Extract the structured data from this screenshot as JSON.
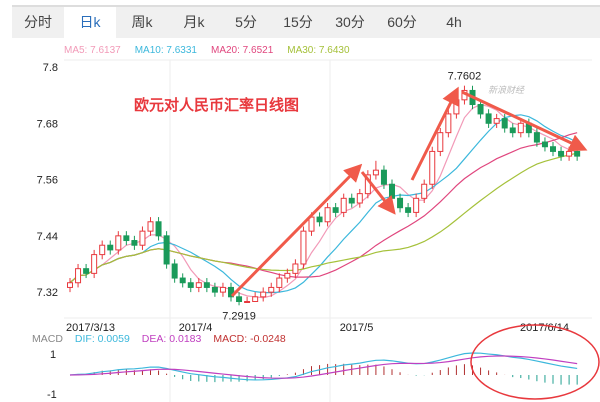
{
  "tabs": [
    "分时",
    "日k",
    "周k",
    "月k",
    "5分",
    "15分",
    "30分",
    "60分",
    "4h"
  ],
  "active_tab": "日k",
  "ma_legend": [
    {
      "label": "MA5: 7.6137",
      "color": "#f29ab8"
    },
    {
      "label": "MA10: 7.6331",
      "color": "#3cb8dc"
    },
    {
      "label": "MA20: 7.6521",
      "color": "#e0467e"
    },
    {
      "label": "MA30: 7.6430",
      "color": "#a5c13a"
    }
  ],
  "annotation": "欧元对人民币汇率日线图",
  "watermark": "新浪财经",
  "macd_legend": {
    "name": "MACD",
    "dif": "DIF: 0.0059",
    "dea": "DEA: 0.0183",
    "macd": "MACD: -0.0248"
  },
  "colors": {
    "up": "#e8383d",
    "down": "#1a9a5a",
    "arrow": "#f05a4a"
  },
  "chart_data": {
    "type": "candlestick",
    "y_ticks": [
      7.8,
      7.68,
      7.56,
      7.44,
      7.32
    ],
    "ylim": [
      7.28,
      7.8
    ],
    "x_ticks": [
      {
        "label": "2017/3/13",
        "index": 0
      },
      {
        "label": "2017/4",
        "index": 14
      },
      {
        "label": "2017/5",
        "index": 34
      },
      {
        "label": "2017/6/14",
        "index": 63
      }
    ],
    "high_label": {
      "value": "7.7602",
      "index": 49
    },
    "low_label": {
      "value": "7.2919",
      "index": 21
    },
    "open": [
      7.33,
      7.34,
      7.37,
      7.36,
      7.4,
      7.42,
      7.41,
      7.44,
      7.43,
      7.42,
      7.45,
      7.47,
      7.44,
      7.38,
      7.35,
      7.34,
      7.33,
      7.34,
      7.33,
      7.32,
      7.33,
      7.31,
      7.3,
      7.3,
      7.31,
      7.32,
      7.33,
      7.35,
      7.36,
      7.38,
      7.45,
      7.48,
      7.47,
      7.5,
      7.49,
      7.52,
      7.51,
      7.53,
      7.57,
      7.58,
      7.55,
      7.52,
      7.5,
      7.49,
      7.52,
      7.55,
      7.62,
      7.66,
      7.7,
      7.73,
      7.75,
      7.72,
      7.7,
      7.68,
      7.69,
      7.67,
      7.66,
      7.68,
      7.66,
      7.64,
      7.63,
      7.62,
      7.61,
      7.62
    ],
    "high": [
      7.35,
      7.38,
      7.38,
      7.41,
      7.43,
      7.43,
      7.45,
      7.45,
      7.44,
      7.46,
      7.48,
      7.48,
      7.45,
      7.39,
      7.36,
      7.35,
      7.35,
      7.35,
      7.34,
      7.34,
      7.34,
      7.32,
      7.31,
      7.32,
      7.33,
      7.34,
      7.36,
      7.37,
      7.39,
      7.46,
      7.49,
      7.49,
      7.51,
      7.51,
      7.53,
      7.53,
      7.54,
      7.58,
      7.6,
      7.59,
      7.56,
      7.53,
      7.51,
      7.53,
      7.56,
      7.63,
      7.67,
      7.71,
      7.74,
      7.7602,
      7.76,
      7.73,
      7.71,
      7.7,
      7.7,
      7.68,
      7.69,
      7.69,
      7.67,
      7.65,
      7.64,
      7.63,
      7.63,
      7.63
    ],
    "low": [
      7.32,
      7.33,
      7.35,
      7.35,
      7.39,
      7.4,
      7.4,
      7.42,
      7.41,
      7.41,
      7.44,
      7.43,
      7.37,
      7.34,
      7.33,
      7.32,
      7.32,
      7.32,
      7.31,
      7.31,
      7.3,
      7.2919,
      7.3,
      7.3,
      7.3,
      7.31,
      7.32,
      7.34,
      7.35,
      7.37,
      7.44,
      7.46,
      7.46,
      7.48,
      7.48,
      7.5,
      7.5,
      7.52,
      7.56,
      7.54,
      7.51,
      7.49,
      7.48,
      7.48,
      7.51,
      7.54,
      7.61,
      7.65,
      7.69,
      7.72,
      7.71,
      7.69,
      7.67,
      7.67,
      7.66,
      7.65,
      7.65,
      7.65,
      7.63,
      7.62,
      7.61,
      7.6,
      7.6,
      7.6
    ],
    "close": [
      7.34,
      7.37,
      7.36,
      7.4,
      7.42,
      7.41,
      7.44,
      7.43,
      7.42,
      7.45,
      7.47,
      7.44,
      7.38,
      7.35,
      7.34,
      7.33,
      7.34,
      7.33,
      7.32,
      7.33,
      7.31,
      7.3,
      7.3,
      7.31,
      7.32,
      7.33,
      7.35,
      7.36,
      7.38,
      7.45,
      7.48,
      7.47,
      7.5,
      7.49,
      7.52,
      7.51,
      7.53,
      7.57,
      7.58,
      7.55,
      7.52,
      7.5,
      7.49,
      7.52,
      7.55,
      7.62,
      7.66,
      7.7,
      7.73,
      7.75,
      7.72,
      7.7,
      7.68,
      7.69,
      7.67,
      7.66,
      7.68,
      7.66,
      7.64,
      7.63,
      7.62,
      7.61,
      7.62,
      7.61
    ],
    "macd_y_ticks": [
      "1",
      "-1"
    ]
  }
}
